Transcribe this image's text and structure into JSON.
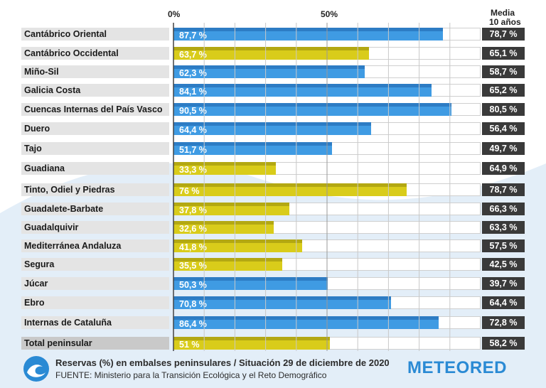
{
  "chart_data": {
    "type": "bar",
    "orientation": "horizontal",
    "title": "Reservas (%) en embalses peninsulares / Situación 29 de diciembre de 2020",
    "source": "FUENTE: Ministerio para la Transición Ecológica y el Reto Demográfico",
    "axis_ticks": [
      "0%",
      "50%"
    ],
    "xlim": [
      0,
      100
    ],
    "media_header_line1": "Media",
    "media_header_line2": "10 años",
    "colors": {
      "blue": "#3f9be3",
      "yellow": "#d9cc1a",
      "media_bg": "#3a3a3a"
    },
    "categories": [
      "Cantábrico Oriental",
      "Cantábrico Occidental",
      "Miño-Sil",
      "Galicia Costa",
      "Cuencas Internas del País Vasco",
      "Duero",
      "Tajo",
      "Guadiana",
      "Tinto, Odiel y Piedras",
      "Guadalete-Barbate",
      "Guadalquivir",
      "Mediterránea Andaluza",
      "Segura",
      "Júcar",
      "Ebro",
      "Internas de Cataluña",
      "Total peninsular"
    ],
    "values": [
      87.7,
      63.7,
      62.3,
      84.1,
      90.5,
      64.4,
      51.7,
      33.3,
      76,
      37.8,
      32.6,
      41.8,
      35.5,
      50.3,
      70.8,
      86.4,
      51
    ],
    "value_labels": [
      "87,7 %",
      "63,7 %",
      "62,3 %",
      "84,1 %",
      "90,5 %",
      "64,4 %",
      "51,7 %",
      "33,3 %",
      "76 %",
      "37,8 %",
      "32,6 %",
      "41,8 %",
      "35,5 %",
      "50,3 %",
      "70,8 %",
      "86,4 %",
      "51 %"
    ],
    "bar_colors": [
      "blue",
      "yellow",
      "blue",
      "blue",
      "blue",
      "blue",
      "blue",
      "yellow",
      "yellow",
      "yellow",
      "yellow",
      "yellow",
      "yellow",
      "blue",
      "blue",
      "blue",
      "yellow"
    ],
    "media_10_anos": [
      "78,7 %",
      "65,1 %",
      "58,7 %",
      "65,2 %",
      "80,5 %",
      "56,4 %",
      "49,7 %",
      "64,9 %",
      "78,7 %",
      "66,3 %",
      "63,3 %",
      "57,5 %",
      "42,5 %",
      "39,7 %",
      "64,4 %",
      "72,8 %",
      "58,2 %"
    ]
  },
  "brand": {
    "logo_text": "METEORED",
    "logo_icon": "wave-icon"
  }
}
